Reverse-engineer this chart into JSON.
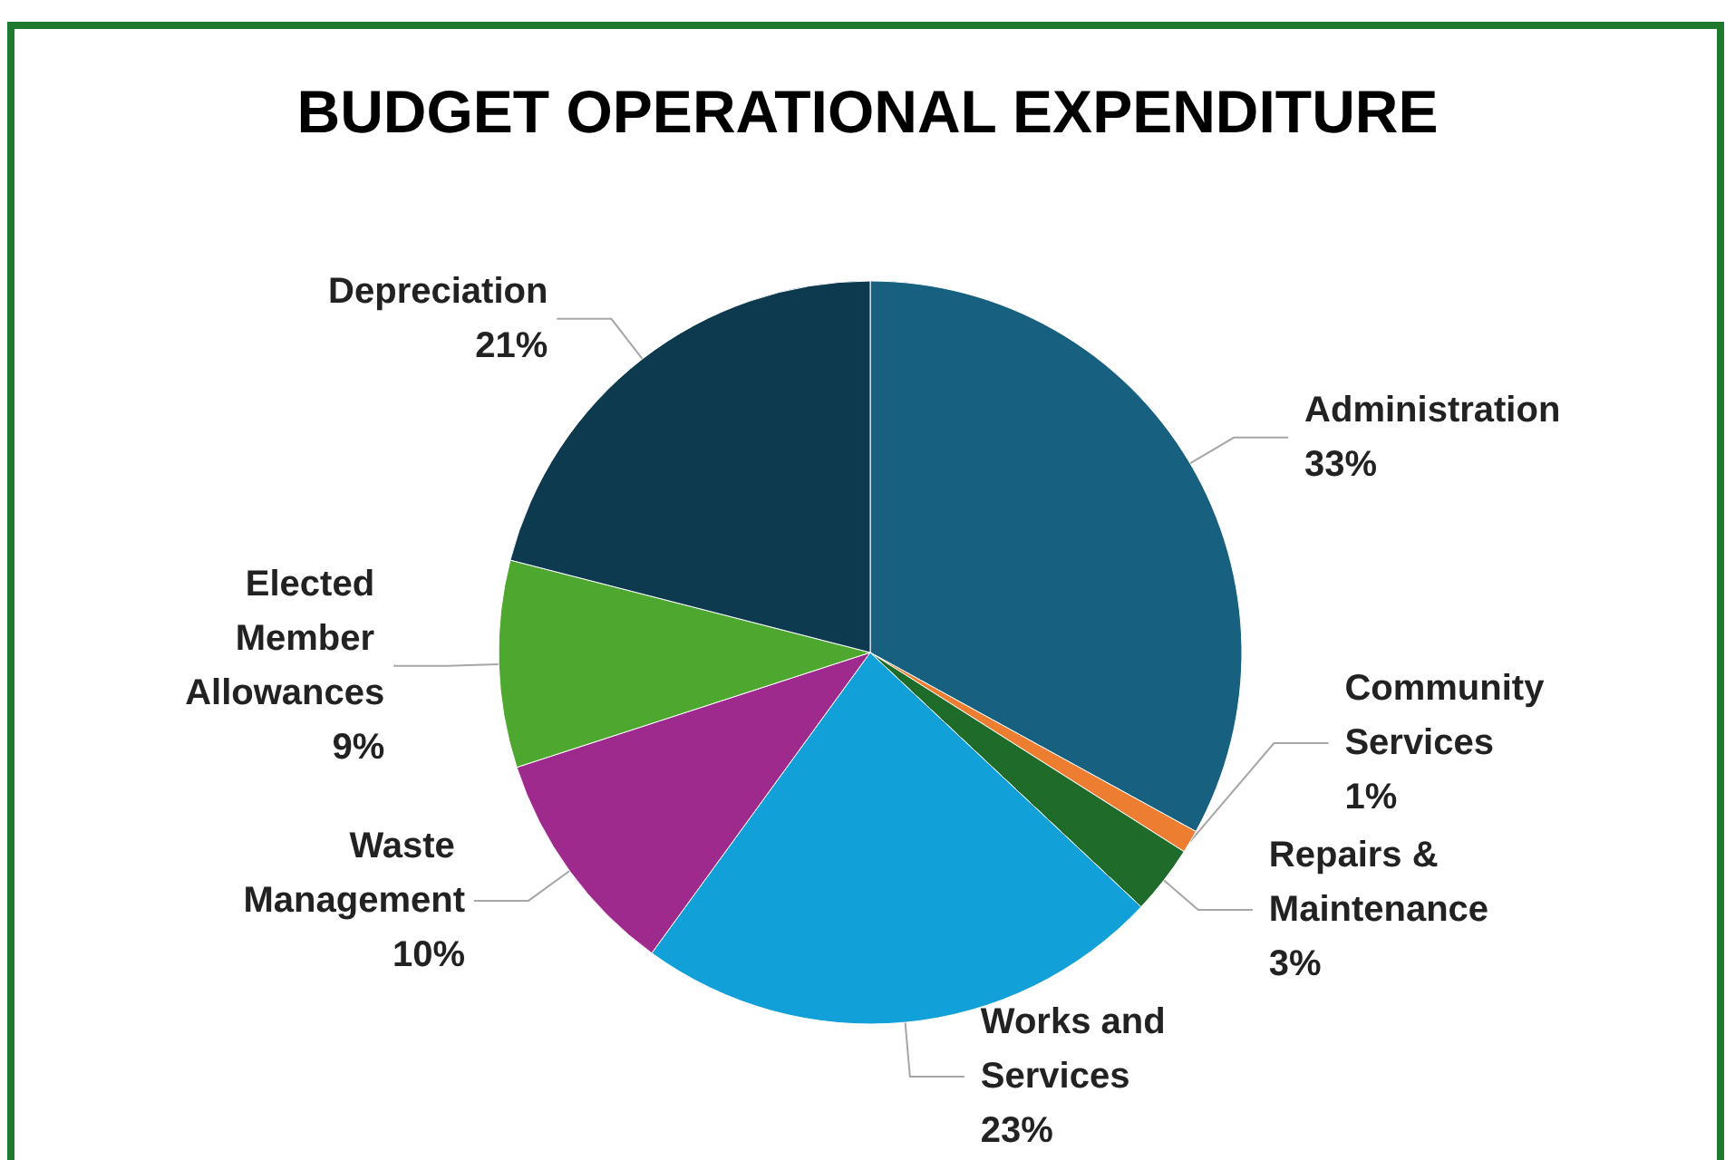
{
  "chart_data": {
    "type": "pie",
    "title": "BUDGET OPERATIONAL EXPENDITURE",
    "categories": [
      "Administration",
      "Community Services",
      "Repairs & Maintenance",
      "Works and Services",
      "Waste Management",
      "Elected Member Allowances",
      "Depreciation"
    ],
    "values": [
      33,
      1,
      3,
      23,
      10,
      9,
      21
    ],
    "colors": [
      "#17607f",
      "#ed7d31",
      "#1e6b2a",
      "#11a0d8",
      "#9e2a8e",
      "#4ea72e",
      "#0e3a50"
    ],
    "value_labels": [
      "33%",
      "1%",
      "3%",
      "23%",
      "10%",
      "9%",
      "21%"
    ],
    "legend": false
  }
}
